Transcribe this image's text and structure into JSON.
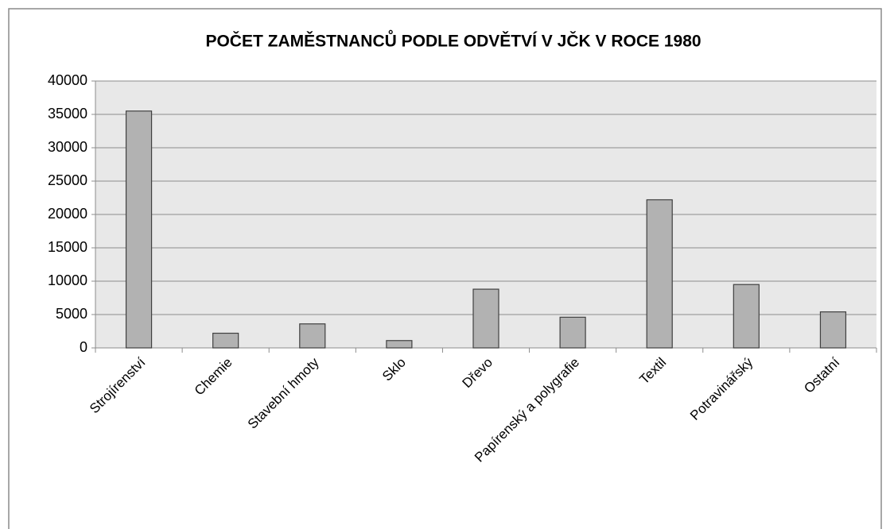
{
  "chart_data": {
    "type": "bar",
    "title": "POČET ZAMĚSTNANCŮ PODLE ODVĚTVÍ V JČK V ROCE 1980",
    "categories": [
      "Strojírenství",
      "Chemie",
      "Stavební hmoty",
      "Sklo",
      "Dřevo",
      "Papírenský a polygrafie",
      "Textil",
      "Potravinářský",
      "Ostatní"
    ],
    "values": [
      35500,
      2200,
      3600,
      1100,
      8800,
      4600,
      22200,
      9500,
      5400
    ],
    "color": "#b2b2b2",
    "ylim": [
      0,
      40000
    ],
    "yticks": [
      0,
      5000,
      10000,
      15000,
      20000,
      25000,
      30000,
      35000,
      40000
    ],
    "grid": true
  }
}
